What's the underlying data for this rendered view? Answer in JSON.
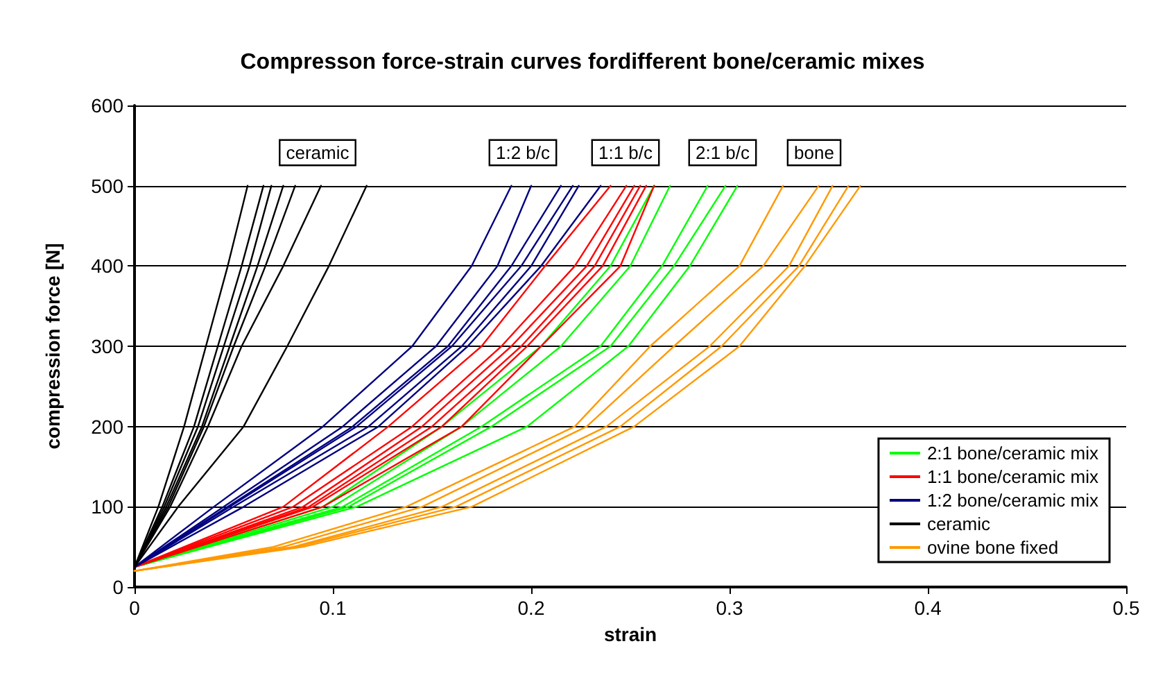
{
  "chart_data": {
    "type": "line",
    "title": "Compresson force-strain curves fordifferent bone/ceramic mixes",
    "xlabel": "strain",
    "ylabel": "compression force [N]",
    "xlim": [
      0,
      0.5
    ],
    "xticks": [
      0,
      0.1,
      0.2,
      0.3,
      0.4,
      0.5
    ],
    "ylim": [
      0,
      600
    ],
    "yticks": [
      0,
      100,
      200,
      300,
      400,
      500,
      600
    ],
    "grid": "y",
    "legend": "bottom right",
    "annotations": [
      "ceramic",
      "1:2 b/c",
      "1:1 b/c",
      "2:1 b/c",
      "bone"
    ],
    "series": [
      {
        "name": "2:1 bone/ceramic mix",
        "color": "#00ff00",
        "x": [
          0,
          0.095,
          0.155,
          0.205,
          0.24,
          0.262
        ],
        "values": [
          25,
          100,
          200,
          300,
          400,
          500
        ]
      },
      {
        "color": "#00ff00",
        "x": [
          0,
          0.1,
          0.165,
          0.215,
          0.25,
          0.27
        ],
        "values": [
          25,
          100,
          200,
          300,
          400,
          500
        ]
      },
      {
        "color": "#00ff00",
        "x": [
          0,
          0.105,
          0.175,
          0.235,
          0.266,
          0.289
        ],
        "values": [
          25,
          100,
          200,
          300,
          400,
          500
        ]
      },
      {
        "color": "#00ff00",
        "x": [
          0,
          0.108,
          0.18,
          0.24,
          0.272,
          0.298
        ],
        "values": [
          25,
          100,
          200,
          300,
          400,
          500
        ]
      },
      {
        "color": "#00ff00",
        "x": [
          0,
          0.112,
          0.198,
          0.249,
          0.28,
          0.304
        ],
        "values": [
          25,
          100,
          200,
          300,
          400,
          500
        ]
      },
      {
        "name": "1:1 bone/ceramic mix",
        "color": "#ff0000",
        "x": [
          0,
          0.075,
          0.128,
          0.175,
          0.207,
          0.24
        ],
        "values": [
          25,
          100,
          200,
          300,
          400,
          500
        ]
      },
      {
        "color": "#ff0000",
        "x": [
          0,
          0.08,
          0.14,
          0.185,
          0.222,
          0.248
        ],
        "values": [
          25,
          100,
          200,
          300,
          400,
          500
        ]
      },
      {
        "color": "#ff0000",
        "x": [
          0,
          0.085,
          0.145,
          0.19,
          0.228,
          0.252
        ],
        "values": [
          25,
          100,
          200,
          300,
          400,
          500
        ]
      },
      {
        "color": "#ff0000",
        "x": [
          0,
          0.088,
          0.15,
          0.195,
          0.232,
          0.255
        ],
        "values": [
          25,
          100,
          200,
          300,
          400,
          500
        ]
      },
      {
        "color": "#ff0000",
        "x": [
          0,
          0.09,
          0.155,
          0.198,
          0.236,
          0.258
        ],
        "values": [
          25,
          100,
          200,
          300,
          400,
          500
        ]
      },
      {
        "color": "#ff0000",
        "x": [
          0,
          0.095,
          0.165,
          0.205,
          0.245,
          0.262
        ],
        "values": [
          25,
          100,
          200,
          300,
          400,
          500
        ]
      },
      {
        "name": "1:2 bone/ceramic mix",
        "color": "#000080",
        "x": [
          0,
          0.04,
          0.095,
          0.14,
          0.17,
          0.19
        ],
        "values": [
          25,
          100,
          200,
          300,
          400,
          500
        ]
      },
      {
        "color": "#000080",
        "x": [
          0,
          0.045,
          0.105,
          0.152,
          0.183,
          0.2
        ],
        "values": [
          25,
          100,
          200,
          300,
          400,
          500
        ]
      },
      {
        "color": "#000080",
        "x": [
          0,
          0.047,
          0.11,
          0.158,
          0.19,
          0.215
        ],
        "values": [
          25,
          100,
          200,
          300,
          400,
          500
        ]
      },
      {
        "color": "#000080",
        "x": [
          0,
          0.048,
          0.112,
          0.16,
          0.195,
          0.221
        ],
        "values": [
          25,
          100,
          200,
          300,
          400,
          500
        ]
      },
      {
        "color": "#000080",
        "x": [
          0,
          0.05,
          0.118,
          0.165,
          0.2,
          0.224
        ],
        "values": [
          25,
          100,
          200,
          300,
          400,
          500
        ]
      },
      {
        "color": "#000080",
        "x": [
          0,
          0.055,
          0.123,
          0.168,
          0.205,
          0.235
        ],
        "values": [
          25,
          100,
          200,
          300,
          400,
          500
        ]
      },
      {
        "name": "ceramic",
        "color": "#000000",
        "x": [
          0,
          0.012,
          0.025,
          0.036,
          0.047,
          0.057
        ],
        "values": [
          25,
          100,
          200,
          300,
          400,
          500
        ]
      },
      {
        "color": "#000000",
        "x": [
          0,
          0.014,
          0.03,
          0.042,
          0.054,
          0.065
        ],
        "values": [
          25,
          100,
          200,
          300,
          400,
          500
        ]
      },
      {
        "color": "#000000",
        "x": [
          0,
          0.015,
          0.032,
          0.045,
          0.058,
          0.069
        ],
        "values": [
          25,
          100,
          200,
          300,
          400,
          500
        ]
      },
      {
        "color": "#000000",
        "x": [
          0,
          0.016,
          0.034,
          0.048,
          0.062,
          0.075
        ],
        "values": [
          25,
          100,
          200,
          300,
          400,
          500
        ]
      },
      {
        "color": "#000000",
        "x": [
          0,
          0.017,
          0.035,
          0.05,
          0.066,
          0.081
        ],
        "values": [
          25,
          100,
          200,
          300,
          400,
          500
        ]
      },
      {
        "color": "#000000",
        "x": [
          0,
          0.018,
          0.037,
          0.054,
          0.075,
          0.094
        ],
        "values": [
          25,
          100,
          200,
          300,
          400,
          500
        ]
      },
      {
        "color": "#000000",
        "x": [
          0,
          0.022,
          0.055,
          0.077,
          0.098,
          0.117
        ],
        "values": [
          25,
          100,
          200,
          300,
          400,
          500
        ]
      },
      {
        "name": "ovine bone fixed",
        "color": "#ff9900",
        "x": [
          0,
          0.07,
          0.137,
          0.222,
          0.26,
          0.305,
          0.327
        ],
        "values": [
          20,
          50,
          100,
          200,
          300,
          400,
          500
        ]
      },
      {
        "color": "#ff9900",
        "x": [
          0,
          0.075,
          0.145,
          0.228,
          0.272,
          0.317,
          0.345
        ],
        "values": [
          20,
          50,
          100,
          200,
          300,
          400,
          500
        ]
      },
      {
        "color": "#ff9900",
        "x": [
          0,
          0.08,
          0.155,
          0.238,
          0.29,
          0.33,
          0.352
        ],
        "values": [
          20,
          50,
          100,
          200,
          300,
          400,
          500
        ]
      },
      {
        "color": "#ff9900",
        "x": [
          0,
          0.082,
          0.162,
          0.245,
          0.296,
          0.335,
          0.36
        ],
        "values": [
          20,
          50,
          100,
          200,
          300,
          400,
          500
        ]
      },
      {
        "color": "#ff9900",
        "x": [
          0,
          0.085,
          0.17,
          0.252,
          0.305,
          0.338,
          0.366
        ],
        "values": [
          20,
          50,
          100,
          200,
          300,
          400,
          500
        ]
      }
    ]
  }
}
